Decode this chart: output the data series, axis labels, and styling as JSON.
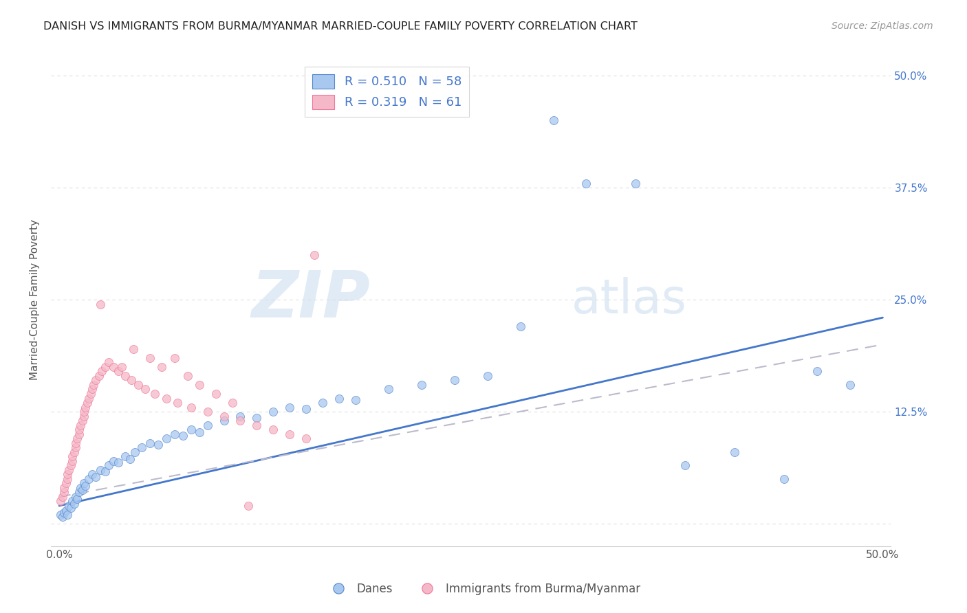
{
  "title": "DANISH VS IMMIGRANTS FROM BURMA/MYANMAR MARRIED-COUPLE FAMILY POVERTY CORRELATION CHART",
  "source": "Source: ZipAtlas.com",
  "ylabel": "Married-Couple Family Poverty",
  "xlim": [
    -0.005,
    0.505
  ],
  "ylim": [
    -0.025,
    0.525
  ],
  "legend_R_blue": "0.510",
  "legend_N_blue": "58",
  "legend_R_pink": "0.319",
  "legend_N_pink": "61",
  "watermark_zip": "ZIP",
  "watermark_atlas": "atlas",
  "blue_fill": "#A8C8F0",
  "pink_fill": "#F5B8C8",
  "blue_edge": "#5588CC",
  "pink_edge": "#EE7799",
  "blue_line": "#4477CC",
  "pink_line": "#BBBBCC",
  "title_color": "#222222",
  "source_color": "#999999",
  "ylabel_color": "#555555",
  "right_tick_color": "#4477CC",
  "grid_color": "#DDDDDD",
  "legend_text_color": "#4477CC",
  "legend_border": "#CCCCCC",
  "bottom_legend_color": "#555555",
  "danes_x": [
    0.001,
    0.002,
    0.003,
    0.004,
    0.005,
    0.006,
    0.007,
    0.008,
    0.009,
    0.01,
    0.011,
    0.012,
    0.013,
    0.014,
    0.015,
    0.016,
    0.018,
    0.02,
    0.022,
    0.025,
    0.028,
    0.03,
    0.033,
    0.036,
    0.04,
    0.043,
    0.046,
    0.05,
    0.055,
    0.06,
    0.065,
    0.07,
    0.075,
    0.08,
    0.085,
    0.09,
    0.1,
    0.11,
    0.12,
    0.13,
    0.14,
    0.15,
    0.16,
    0.17,
    0.18,
    0.2,
    0.22,
    0.24,
    0.26,
    0.28,
    0.3,
    0.32,
    0.35,
    0.38,
    0.41,
    0.44,
    0.46,
    0.48
  ],
  "danes_y": [
    0.01,
    0.008,
    0.012,
    0.015,
    0.01,
    0.02,
    0.018,
    0.025,
    0.022,
    0.03,
    0.028,
    0.035,
    0.04,
    0.038,
    0.045,
    0.042,
    0.05,
    0.055,
    0.052,
    0.06,
    0.058,
    0.065,
    0.07,
    0.068,
    0.075,
    0.072,
    0.08,
    0.085,
    0.09,
    0.088,
    0.095,
    0.1,
    0.098,
    0.105,
    0.102,
    0.11,
    0.115,
    0.12,
    0.118,
    0.125,
    0.13,
    0.128,
    0.135,
    0.14,
    0.138,
    0.15,
    0.155,
    0.16,
    0.165,
    0.22,
    0.45,
    0.38,
    0.38,
    0.065,
    0.08,
    0.05,
    0.17,
    0.155
  ],
  "burma_x": [
    0.001,
    0.002,
    0.003,
    0.003,
    0.004,
    0.005,
    0.005,
    0.006,
    0.007,
    0.008,
    0.008,
    0.009,
    0.01,
    0.01,
    0.011,
    0.012,
    0.012,
    0.013,
    0.014,
    0.015,
    0.015,
    0.016,
    0.017,
    0.018,
    0.019,
    0.02,
    0.021,
    0.022,
    0.024,
    0.026,
    0.028,
    0.03,
    0.033,
    0.036,
    0.04,
    0.044,
    0.048,
    0.052,
    0.058,
    0.065,
    0.072,
    0.08,
    0.09,
    0.1,
    0.11,
    0.12,
    0.13,
    0.14,
    0.15,
    0.155,
    0.025,
    0.038,
    0.045,
    0.055,
    0.062,
    0.07,
    0.078,
    0.085,
    0.095,
    0.105,
    0.115
  ],
  "burma_y": [
    0.025,
    0.03,
    0.035,
    0.04,
    0.045,
    0.05,
    0.055,
    0.06,
    0.065,
    0.07,
    0.075,
    0.08,
    0.085,
    0.09,
    0.095,
    0.1,
    0.105,
    0.11,
    0.115,
    0.12,
    0.125,
    0.13,
    0.135,
    0.14,
    0.145,
    0.15,
    0.155,
    0.16,
    0.165,
    0.17,
    0.175,
    0.18,
    0.175,
    0.17,
    0.165,
    0.16,
    0.155,
    0.15,
    0.145,
    0.14,
    0.135,
    0.13,
    0.125,
    0.12,
    0.115,
    0.11,
    0.105,
    0.1,
    0.095,
    0.3,
    0.245,
    0.175,
    0.195,
    0.185,
    0.175,
    0.185,
    0.165,
    0.155,
    0.145,
    0.135,
    0.02
  ]
}
